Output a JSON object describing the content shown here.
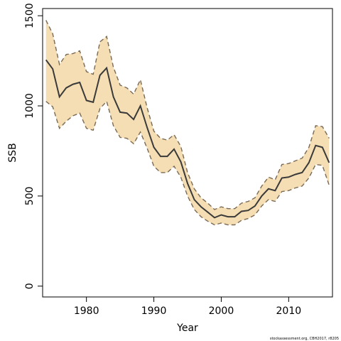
{
  "chart_data": {
    "type": "line",
    "xlabel": "Year",
    "ylabel": "SSB",
    "xlim": [
      1973.5,
      2016.5
    ],
    "ylim": [
      -60,
      1540
    ],
    "x_ticks": [
      1980,
      1990,
      2000,
      2010
    ],
    "y_ticks": [
      0,
      500,
      1000,
      1500
    ],
    "grid": false,
    "colors": {
      "band": "#f5deb3",
      "band_edge": "#7a6a55",
      "line": "#3a3a3a"
    },
    "x": [
      1974,
      1975,
      1976,
      1977,
      1978,
      1979,
      1980,
      1981,
      1982,
      1983,
      1984,
      1985,
      1986,
      1987,
      1988,
      1989,
      1990,
      1991,
      1992,
      1993,
      1994,
      1995,
      1996,
      1997,
      1998,
      1999,
      2000,
      2001,
      2002,
      2003,
      2004,
      2005,
      2006,
      2007,
      2008,
      2009,
      2010,
      2011,
      2012,
      2013,
      2014,
      2015,
      2016
    ],
    "series": [
      {
        "values": [
          1255,
          1205,
          1050,
          1100,
          1120,
          1130,
          1030,
          1020,
          1170,
          1210,
          1050,
          965,
          960,
          925,
          1000,
          880,
          770,
          720,
          720,
          760,
          690,
          570,
          480,
          440,
          410,
          380,
          395,
          385,
          385,
          415,
          420,
          445,
          500,
          540,
          530,
          600,
          605,
          620,
          630,
          685,
          780,
          770,
          685
        ]
      },
      {
        "values": [
          1475,
          1400,
          1230,
          1285,
          1290,
          1305,
          1190,
          1175,
          1355,
          1385,
          1215,
          1115,
          1100,
          1065,
          1145,
          990,
          860,
          820,
          810,
          840,
          775,
          630,
          540,
          490,
          460,
          425,
          440,
          430,
          430,
          460,
          470,
          490,
          555,
          605,
          590,
          675,
          680,
          695,
          710,
          770,
          890,
          885,
          820
        ]
      },
      {
        "values": [
          1025,
          995,
          875,
          915,
          945,
          960,
          875,
          865,
          985,
          1025,
          890,
          825,
          820,
          790,
          855,
          765,
          665,
          630,
          630,
          665,
          605,
          500,
          425,
          385,
          360,
          340,
          350,
          340,
          340,
          365,
          375,
          395,
          445,
          480,
          470,
          525,
          530,
          545,
          555,
          600,
          675,
          670,
          560
        ]
      }
    ]
  },
  "footer": {
    "credit": "stockassessment.org, CBH2017, r8205"
  }
}
